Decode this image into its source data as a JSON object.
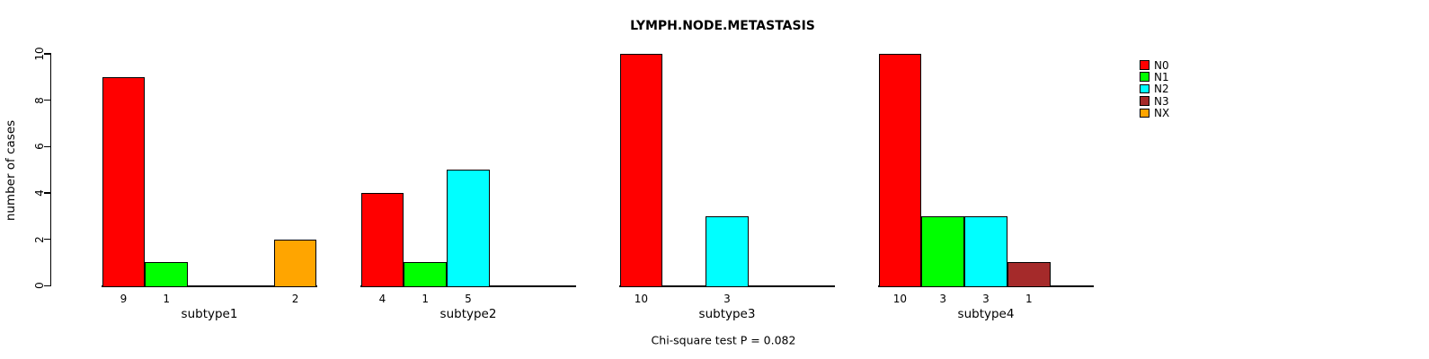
{
  "chart_data": {
    "type": "bar",
    "title": "LYMPH.NODE.METASTASIS",
    "ylabel": "number of cases",
    "xlabel": "",
    "ylim": [
      0,
      10
    ],
    "yticks": [
      0,
      2,
      4,
      6,
      8,
      10
    ],
    "grid": false,
    "background": "#FFFFFF",
    "axis_color": "#000000",
    "groups": [
      "subtype1",
      "subtype2",
      "subtype3",
      "subtype4"
    ],
    "series": [
      {
        "name": "N0",
        "color": "#FF0000",
        "values": [
          9,
          4,
          10,
          10
        ]
      },
      {
        "name": "N1",
        "color": "#00FF00",
        "values": [
          1,
          1,
          0,
          3
        ]
      },
      {
        "name": "N2",
        "color": "#00FFFF",
        "values": [
          0,
          5,
          3,
          3
        ]
      },
      {
        "name": "N3",
        "color": "#A52A2A",
        "values": [
          0,
          0,
          0,
          1
        ]
      },
      {
        "name": "NX",
        "color": "#FFA500",
        "values": [
          2,
          0,
          0,
          0
        ]
      }
    ],
    "bar_value_labels_shown": true,
    "legend": {
      "position": "right",
      "entries": [
        "N0",
        "N1",
        "N2",
        "N3",
        "NX"
      ]
    },
    "annotation": "Chi-square test P = 0.082"
  }
}
